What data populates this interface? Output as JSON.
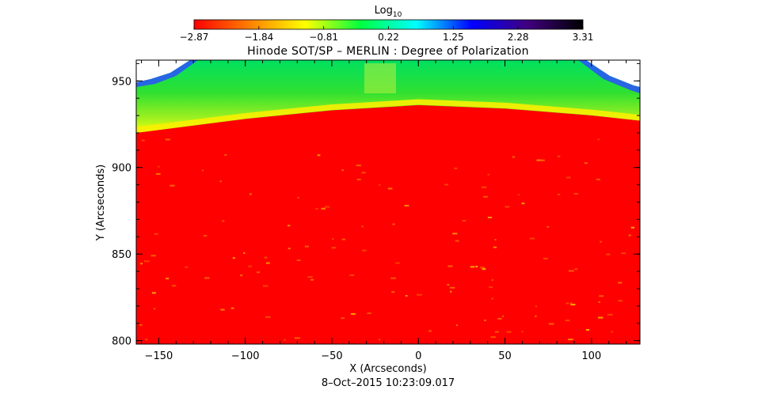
{
  "chart_data": {
    "type": "heatmap",
    "title": "Hinode SOT/SP – MERLIN : Degree of Polarization",
    "timestamp": "8–Oct–2015 10:23:09.017",
    "xlabel": "X (Arcseconds)",
    "ylabel": "Y (Arcseconds)",
    "xlim": [
      -163,
      128
    ],
    "ylim": [
      798,
      962
    ],
    "xticks": [
      -150,
      -100,
      -50,
      0,
      50,
      100
    ],
    "yticks": [
      800,
      850,
      900,
      950
    ],
    "x_tick_labels": [
      "−150",
      "−100",
      "−50",
      "0",
      "50",
      "100"
    ],
    "y_tick_labels": [
      "800",
      "850",
      "900",
      "950"
    ],
    "colorbar": {
      "label_base": "Log",
      "label_sub": "10",
      "scale": "log10",
      "range": [
        -2.87,
        3.31
      ],
      "ticks": [
        -2.87,
        -1.84,
        -0.81,
        0.22,
        1.25,
        2.28,
        3.31
      ],
      "tick_labels": [
        "−2.87",
        "−1.84",
        "−0.81",
        "0.22",
        "1.25",
        "2.28",
        "3.31"
      ],
      "colormap": [
        "#ff0000",
        "#ff8000",
        "#ffff00",
        "#00ff40",
        "#00ffff",
        "#0000ff",
        "#400080",
        "#000000"
      ]
    },
    "limb": {
      "description_points_x": [
        -163,
        -100,
        -50,
        0,
        50,
        100,
        128
      ],
      "description_points_y": [
        920,
        928,
        933,
        936,
        934,
        930,
        927
      ]
    },
    "colors": {
      "disk": "#ff0000",
      "limb_yellow": "#ffff00",
      "offlimb_green": "#40e040",
      "edge_blue": "#0040ff"
    }
  }
}
